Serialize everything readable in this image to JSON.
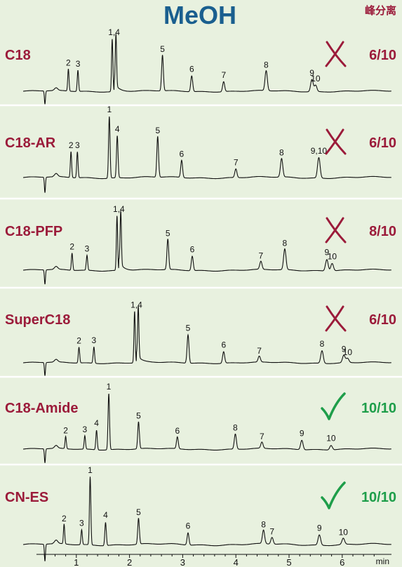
{
  "header": {
    "title": "MeOH",
    "corner_label": "峰分离"
  },
  "colors": {
    "background": "#e8f1df",
    "column_label": "#9b1b3a",
    "fail_mark": "#9b1b3a",
    "pass_mark": "#1e9e4a",
    "title": "#1a5f8f"
  },
  "chart_data": {
    "type": "line",
    "xlabel": "min",
    "xlim": [
      0,
      6.7
    ],
    "x_ticks": [
      1,
      2,
      3,
      4,
      5,
      6
    ],
    "x_tick_labels": [
      "1",
      "2",
      "3",
      "4",
      "5",
      "6"
    ],
    "panels": [
      {
        "name": "C18",
        "score": "6/10",
        "status": "fail",
        "status_icon": "cross-icon",
        "peaks": [
          {
            "label": "2",
            "t": 0.85,
            "h": 0.42
          },
          {
            "label": "3",
            "t": 1.03,
            "h": 0.4
          },
          {
            "label": "1,4",
            "t": 1.71,
            "h": 1.0,
            "double": true
          },
          {
            "label": "5",
            "t": 2.62,
            "h": 0.68
          },
          {
            "label": "6",
            "t": 3.17,
            "h": 0.3
          },
          {
            "label": "7",
            "t": 3.77,
            "h": 0.19
          },
          {
            "label": "8",
            "t": 4.57,
            "h": 0.38
          },
          {
            "label": "9",
            "t": 5.43,
            "h": 0.23
          },
          {
            "label": "10",
            "t": 5.5,
            "h": 0.12
          }
        ]
      },
      {
        "name": "C18-AR",
        "score": "6/10",
        "status": "fail",
        "status_icon": "cross-icon",
        "peaks": [
          {
            "label": "2",
            "t": 0.9,
            "h": 0.42
          },
          {
            "label": "3",
            "t": 1.02,
            "h": 0.42
          },
          {
            "label": "1",
            "t": 1.62,
            "h": 1.0
          },
          {
            "label": "4",
            "t": 1.77,
            "h": 0.68
          },
          {
            "label": "5",
            "t": 2.53,
            "h": 0.66
          },
          {
            "label": "6",
            "t": 2.98,
            "h": 0.28
          },
          {
            "label": "7",
            "t": 4.0,
            "h": 0.14
          },
          {
            "label": "8",
            "t": 4.86,
            "h": 0.3
          },
          {
            "label": "9,10",
            "t": 5.56,
            "h": 0.33
          }
        ]
      },
      {
        "name": "C18-PFP",
        "score": "8/10",
        "status": "fail",
        "status_icon": "cross-icon",
        "peaks": [
          {
            "label": "2",
            "t": 0.92,
            "h": 0.3
          },
          {
            "label": "3",
            "t": 1.2,
            "h": 0.26
          },
          {
            "label": "1,4",
            "t": 1.8,
            "h": 0.95,
            "double": true
          },
          {
            "label": "5",
            "t": 2.72,
            "h": 0.53
          },
          {
            "label": "6",
            "t": 3.18,
            "h": 0.25
          },
          {
            "label": "7",
            "t": 4.47,
            "h": 0.14
          },
          {
            "label": "8",
            "t": 4.92,
            "h": 0.36
          },
          {
            "label": "9",
            "t": 5.71,
            "h": 0.2
          },
          {
            "label": "10",
            "t": 5.81,
            "h": 0.13
          }
        ]
      },
      {
        "name": "SuperC18",
        "score": "6/10",
        "status": "fail",
        "status_icon": "cross-icon",
        "peaks": [
          {
            "label": "2",
            "t": 1.05,
            "h": 0.3
          },
          {
            "label": "3",
            "t": 1.33,
            "h": 0.31
          },
          {
            "label": "1,4",
            "t": 2.13,
            "h": 0.98,
            "double": true
          },
          {
            "label": "5",
            "t": 3.1,
            "h": 0.54
          },
          {
            "label": "6",
            "t": 3.77,
            "h": 0.22
          },
          {
            "label": "7",
            "t": 4.44,
            "h": 0.11
          },
          {
            "label": "8",
            "t": 5.62,
            "h": 0.24
          },
          {
            "label": "9",
            "t": 6.03,
            "h": 0.14
          },
          {
            "label": "10",
            "t": 6.1,
            "h": 0.08
          }
        ]
      },
      {
        "name": "C18-Amide",
        "score": "10/10",
        "status": "pass",
        "status_icon": "check-icon",
        "peaks": [
          {
            "label": "2",
            "t": 0.8,
            "h": 0.22
          },
          {
            "label": "3",
            "t": 1.16,
            "h": 0.24
          },
          {
            "label": "4",
            "t": 1.38,
            "h": 0.35
          },
          {
            "label": "1",
            "t": 1.61,
            "h": 1.0
          },
          {
            "label": "5",
            "t": 2.17,
            "h": 0.48
          },
          {
            "label": "6",
            "t": 2.9,
            "h": 0.21
          },
          {
            "label": "8",
            "t": 3.99,
            "h": 0.27
          },
          {
            "label": "7",
            "t": 4.49,
            "h": 0.11
          },
          {
            "label": "9",
            "t": 5.24,
            "h": 0.17
          },
          {
            "label": "10",
            "t": 5.79,
            "h": 0.08
          }
        ]
      },
      {
        "name": "CN-ES",
        "score": "10/10",
        "status": "pass",
        "status_icon": "check-icon",
        "peaks": [
          {
            "label": "2",
            "t": 0.77,
            "h": 0.29
          },
          {
            "label": "3",
            "t": 1.1,
            "h": 0.22
          },
          {
            "label": "1",
            "t": 1.26,
            "h": 1.0
          },
          {
            "label": "4",
            "t": 1.55,
            "h": 0.34
          },
          {
            "label": "5",
            "t": 2.17,
            "h": 0.38
          },
          {
            "label": "6",
            "t": 3.1,
            "h": 0.18
          },
          {
            "label": "8",
            "t": 4.52,
            "h": 0.2
          },
          {
            "label": "7",
            "t": 4.68,
            "h": 0.1
          },
          {
            "label": "9",
            "t": 5.57,
            "h": 0.15
          },
          {
            "label": "10",
            "t": 6.02,
            "h": 0.09
          }
        ]
      }
    ]
  }
}
